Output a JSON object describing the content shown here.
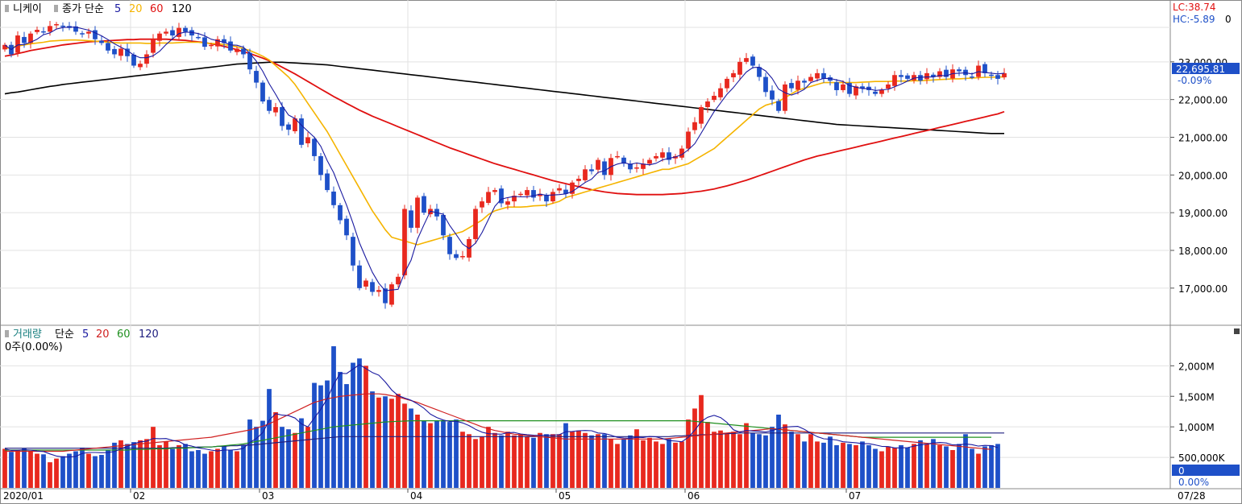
{
  "price_panel": {
    "name": "니케이",
    "ma_title": "종가 단순",
    "ma_periods": [
      "5",
      "20",
      "60",
      "120"
    ],
    "lc_label": "LC:38.74",
    "hc_label": "HC:-5.89",
    "hc_suffix": "0",
    "last_price": "22,695.81",
    "change_pct": "-0.09%",
    "price_ticks": [
      "23,000.00",
      "22,000.00",
      "21,000.00",
      "20,000.00",
      "19,000.00",
      "18,000.00",
      "17,000.00"
    ]
  },
  "volume_panel": {
    "name": "거래량",
    "ma_title": "단순",
    "ma_periods": [
      "5",
      "20",
      "60",
      "120"
    ],
    "current": "0주(0.00%)",
    "volume_ticks": [
      "2,000M",
      "1,500M",
      "1,000M",
      "500,000K"
    ],
    "last_volume": "0",
    "last_pct": "0.00%"
  },
  "x_axis": {
    "month_labels": [
      "2020/01",
      "02",
      "03",
      "04",
      "05",
      "06",
      "07"
    ],
    "end_label": "07/28"
  },
  "colors": {
    "up": "#e8281e",
    "down": "#1e50c8",
    "ma5": "#1a1aa0",
    "ma20": "#f5b400",
    "ma60": "#e01010",
    "ma120": "#000000",
    "vma20": "#d02020",
    "vma60": "#209020",
    "vma120": "#202080",
    "label_bg": "#1e50c8"
  },
  "chart_data": {
    "type": "candlestick",
    "title": "니케이",
    "price_range": [
      16100,
      24000
    ],
    "volume_range": [
      0,
      2400
    ],
    "volume_unit": "M",
    "months": [
      {
        "label": "2020/01",
        "start": 0
      },
      {
        "label": "02",
        "start": 20
      },
      {
        "label": "03",
        "start": 40
      },
      {
        "label": "04",
        "start": 63
      },
      {
        "label": "05",
        "start": 86
      },
      {
        "label": "06",
        "start": 106
      },
      {
        "label": "07",
        "start": 131
      }
    ],
    "closes": [
      23450,
      23200,
      23700,
      23500,
      23750,
      23850,
      23800,
      23950,
      24000,
      23950,
      23900,
      23800,
      23750,
      23800,
      23600,
      23500,
      23300,
      23200,
      23350,
      23150,
      22900,
      22950,
      23200,
      23600,
      23750,
      23800,
      23700,
      23900,
      23800,
      23700,
      23650,
      23400,
      23450,
      23600,
      23500,
      23300,
      23350,
      23200,
      22800,
      22450,
      21950,
      21700,
      21800,
      21300,
      21200,
      21500,
      20800,
      21000,
      20500,
      20000,
      19600,
      19200,
      18800,
      18400,
      17600,
      17000,
      17200,
      16900,
      16950,
      16600,
      17100,
      17300,
      19100,
      18600,
      19400,
      19000,
      19100,
      18900,
      18400,
      17900,
      17800,
      17850,
      18300,
      19100,
      19300,
      19550,
      19600,
      19250,
      19300,
      19450,
      19500,
      19600,
      19400,
      19500,
      19300,
      19550,
      19650,
      19500,
      19800,
      19900,
      20150,
      20100,
      20400,
      20000,
      20450,
      20500,
      20300,
      20150,
      20200,
      20300,
      20400,
      20500,
      20600,
      20400,
      20500,
      20700,
      21150,
      21400,
      21800,
      21950,
      22100,
      22300,
      22550,
      22700,
      23000,
      23100,
      22900,
      22600,
      22200,
      22000,
      21700,
      22400,
      22300,
      22500,
      22450,
      22600,
      22700,
      22550,
      22500,
      22250,
      22400,
      22150,
      22350,
      22300,
      22250,
      22150,
      22250,
      22400,
      22650,
      22600,
      22550,
      22650,
      22500,
      22700,
      22600,
      22750,
      22600,
      22800,
      22750,
      22650,
      22600,
      22900,
      22700,
      22650,
      22550,
      22700
    ],
    "volumes": [
      640,
      590,
      620,
      650,
      600,
      560,
      550,
      420,
      480,
      520,
      560,
      600,
      660,
      560,
      520,
      540,
      620,
      740,
      780,
      720,
      750,
      780,
      800,
      1000,
      700,
      760,
      640,
      700,
      720,
      600,
      620,
      560,
      600,
      640,
      680,
      620,
      600,
      700,
      1120,
      1000,
      1100,
      1620,
      1240,
      1000,
      960,
      900,
      1140,
      1000,
      1720,
      1680,
      1760,
      2320,
      1900,
      1700,
      2050,
      2120,
      2000,
      1580,
      1480,
      1500,
      1460,
      1540,
      1380,
      1300,
      1200,
      1100,
      1060,
      1100,
      1100,
      1080,
      1120,
      920,
      880,
      800,
      840,
      1000,
      900,
      860,
      920,
      860,
      880,
      840,
      820,
      900,
      880,
      880,
      880,
      1060,
      920,
      940,
      900,
      860,
      880,
      880,
      800,
      720,
      800,
      860,
      960,
      780,
      820,
      760,
      720,
      800,
      740,
      760,
      1120,
      1300,
      1520,
      1080,
      920,
      940,
      900,
      920,
      880,
      1060,
      900,
      880,
      860,
      1000,
      1200,
      1040,
      920,
      880,
      760,
      880,
      760,
      740,
      840,
      700,
      740,
      720,
      700,
      760,
      700,
      640,
      600,
      680,
      660,
      700,
      660,
      720,
      780,
      720,
      800,
      700,
      680,
      620,
      720,
      880,
      640,
      560,
      680,
      700,
      720
    ],
    "ma20": [
      23350,
      23380,
      23420,
      23450,
      23480,
      23500,
      23520,
      23550,
      23560,
      23570,
      23580,
      23580,
      23570,
      23560,
      23550,
      23540,
      23520,
      23510,
      23500,
      23500,
      23500,
      23500,
      23490,
      23490,
      23500,
      23500,
      23500,
      23510,
      23520,
      23520,
      23520,
      23500,
      23490,
      23480,
      23460,
      23430,
      23400,
      23350,
      23300,
      23230,
      23150,
      23050,
      22900,
      22750,
      22600,
      22400,
      22150,
      21900,
      21650,
      21400,
      21150,
      20850,
      20550,
      20250,
      19950,
      19650,
      19350,
      19050,
      18800,
      18550,
      18350,
      18300,
      18250,
      18200,
      18150,
      18200,
      18250,
      18300,
      18350,
      18400,
      18450,
      18500,
      18600,
      18700,
      18800,
      18950,
      19050,
      19100,
      19150,
      19150,
      19150,
      19160,
      19180,
      19190,
      19200,
      19250,
      19300,
      19400,
      19450,
      19500,
      19550,
      19600,
      19650,
      19700,
      19750,
      19800,
      19850,
      19900,
      19950,
      20000,
      20050,
      20100,
      20150,
      20150,
      20200,
      20250,
      20300,
      20400,
      20500,
      20600,
      20700,
      20850,
      21000,
      21150,
      21300,
      21450,
      21600,
      21750,
      21850,
      21900,
      21950,
      22050,
      22150,
      22250,
      22300,
      22350,
      22400,
      22450,
      22450,
      22450,
      22450,
      22450,
      22450,
      22460,
      22470,
      22480,
      22480,
      22480,
      22490,
      22490,
      22490,
      22500,
      22500,
      22510,
      22520,
      22530,
      22540,
      22550,
      22550,
      22560,
      22570,
      22580,
      22590,
      22590,
      22600,
      22600
    ],
    "ma60": [
      23150,
      23180,
      23220,
      23260,
      23300,
      23330,
      23360,
      23390,
      23420,
      23450,
      23470,
      23490,
      23510,
      23530,
      23540,
      23550,
      23560,
      23570,
      23580,
      23590,
      23590,
      23600,
      23600,
      23600,
      23600,
      23600,
      23590,
      23580,
      23570,
      23550,
      23530,
      23510,
      23480,
      23450,
      23410,
      23370,
      23320,
      23270,
      23220,
      23160,
      23100,
      23030,
      22950,
      22860,
      22770,
      22680,
      22580,
      22480,
      22380,
      22280,
      22180,
      22080,
      21990,
      21900,
      21810,
      21720,
      21640,
      21560,
      21490,
      21420,
      21350,
      21280,
      21210,
      21140,
      21070,
      21000,
      20930,
      20860,
      20790,
      20720,
      20660,
      20600,
      20540,
      20480,
      20420,
      20360,
      20300,
      20250,
      20200,
      20150,
      20100,
      20050,
      20000,
      19950,
      19900,
      19850,
      19810,
      19770,
      19730,
      19690,
      19650,
      19610,
      19580,
      19550,
      19530,
      19510,
      19500,
      19490,
      19480,
      19480,
      19480,
      19480,
      19480,
      19490,
      19500,
      19510,
      19530,
      19550,
      19570,
      19600,
      19630,
      19670,
      19710,
      19760,
      19810,
      19860,
      19920,
      19980,
      20040,
      20100,
      20160,
      20220,
      20280,
      20340,
      20400,
      20450,
      20500,
      20540,
      20580,
      20620,
      20660,
      20700,
      20740,
      20780,
      20820,
      20860,
      20900,
      20940,
      20980,
      21020,
      21060,
      21100,
      21140,
      21180,
      21220,
      21260,
      21300,
      21340,
      21380,
      21420,
      21460,
      21500,
      21540,
      21580,
      21620,
      21680
    ],
    "ma120": [
      22150,
      22180,
      22200,
      22230,
      22260,
      22290,
      22320,
      22350,
      22370,
      22400,
      22420,
      22440,
      22460,
      22480,
      22500,
      22520,
      22540,
      22560,
      22580,
      22600,
      22620,
      22640,
      22660,
      22680,
      22700,
      22720,
      22740,
      22760,
      22780,
      22800,
      22820,
      22840,
      22860,
      22880,
      22900,
      22920,
      22940,
      22950,
      22960,
      22970,
      22980,
      22990,
      22990,
      22990,
      22980,
      22970,
      22960,
      22950,
      22940,
      22930,
      22920,
      22900,
      22880,
      22860,
      22840,
      22820,
      22800,
      22780,
      22760,
      22740,
      22720,
      22700,
      22680,
      22660,
      22640,
      22620,
      22600,
      22580,
      22560,
      22540,
      22520,
      22500,
      22480,
      22460,
      22440,
      22420,
      22400,
      22380,
      22360,
      22340,
      22320,
      22300,
      22280,
      22260,
      22240,
      22220,
      22200,
      22180,
      22160,
      22140,
      22120,
      22100,
      22080,
      22060,
      22040,
      22020,
      22000,
      21980,
      21960,
      21940,
      21920,
      21900,
      21880,
      21860,
      21840,
      21820,
      21800,
      21780,
      21760,
      21740,
      21720,
      21700,
      21680,
      21660,
      21640,
      21620,
      21600,
      21580,
      21560,
      21540,
      21520,
      21500,
      21480,
      21460,
      21440,
      21420,
      21400,
      21380,
      21360,
      21340,
      21330,
      21320,
      21310,
      21300,
      21290,
      21280,
      21270,
      21260,
      21250,
      21240,
      21230,
      21220,
      21210,
      21200,
      21190,
      21180,
      21170,
      21160,
      21150,
      21140,
      21130,
      21120,
      21110,
      21100,
      21100,
      21100
    ],
    "vma20": [
      600,
      600,
      600,
      600,
      600,
      600,
      600,
      600,
      600,
      600,
      610,
      620,
      630,
      640,
      650,
      660,
      670,
      680,
      690,
      700,
      710,
      720,
      730,
      740,
      750,
      760,
      770,
      780,
      790,
      800,
      810,
      820,
      830,
      850,
      870,
      890,
      910,
      930,
      950,
      980,
      1010,
      1050,
      1100,
      1150,
      1200,
      1250,
      1300,
      1350,
      1400,
      1430,
      1460,
      1480,
      1500,
      1510,
      1520,
      1530,
      1540,
      1540,
      1540,
      1530,
      1510,
      1490,
      1460,
      1430,
      1400,
      1360,
      1320,
      1280,
      1240,
      1200,
      1160,
      1120,
      1080,
      1040,
      1000,
      970,
      940,
      920,
      900,
      880,
      870,
      860,
      850,
      840,
      830,
      820,
      810,
      800,
      800,
      800,
      800,
      800,
      800,
      800,
      800,
      800,
      800,
      800,
      800,
      800,
      800,
      800,
      800,
      810,
      820,
      830,
      840,
      850,
      860,
      870,
      880,
      890,
      900,
      910,
      920,
      930,
      940,
      950,
      960,
      970,
      960,
      950,
      940,
      930,
      920,
      910,
      900,
      890,
      880,
      870,
      860,
      850,
      840,
      830,
      820,
      810,
      800,
      790,
      780,
      770,
      760,
      750,
      740,
      730,
      720,
      710,
      700,
      690,
      680,
      670,
      660,
      650,
      640,
      630
    ],
    "vma60": [
      620,
      620,
      620,
      620,
      620,
      620,
      620,
      620,
      620,
      620,
      620,
      620,
      620,
      620,
      620,
      620,
      620,
      620,
      620,
      620,
      630,
      630,
      630,
      640,
      640,
      640,
      650,
      650,
      650,
      660,
      660,
      670,
      670,
      680,
      690,
      700,
      710,
      720,
      740,
      760,
      780,
      800,
      820,
      840,
      860,
      880,
      900,
      920,
      940,
      960,
      980,
      1000,
      1010,
      1020,
      1030,
      1040,
      1050,
      1060,
      1070,
      1080,
      1085,
      1090,
      1095,
      1100,
      1100,
      1100,
      1100,
      1100,
      1100,
      1100,
      1100,
      1100,
      1100,
      1100,
      1100,
      1100,
      1100,
      1100,
      1100,
      1100,
      1100,
      1100,
      1100,
      1100,
      1100,
      1100,
      1100,
      1100,
      1100,
      1100,
      1100,
      1100,
      1100,
      1100,
      1100,
      1100,
      1100,
      1100,
      1100,
      1100,
      1100,
      1100,
      1100,
      1100,
      1100,
      1100,
      1100,
      1090,
      1080,
      1070,
      1060,
      1050,
      1040,
      1030,
      1020,
      1010,
      1000,
      990,
      980,
      970,
      960,
      950,
      940,
      930,
      920,
      910,
      900,
      890,
      880,
      870,
      860,
      850,
      840,
      830,
      830,
      830,
      830,
      830,
      830,
      830,
      830,
      830,
      830,
      830,
      830,
      830,
      830,
      830,
      830,
      830,
      830,
      830,
      830,
      830
    ],
    "vma120": [
      650,
      650,
      650,
      650,
      650,
      650,
      650,
      650,
      650,
      650,
      650,
      650,
      650,
      650,
      650,
      650,
      650,
      650,
      650,
      650,
      650,
      650,
      650,
      650,
      650,
      650,
      660,
      660,
      660,
      660,
      670,
      670,
      670,
      680,
      680,
      690,
      690,
      700,
      700,
      710,
      720,
      730,
      740,
      750,
      760,
      770,
      780,
      790,
      800,
      810,
      820,
      830,
      840,
      840,
      840,
      840,
      840,
      840,
      840,
      840,
      840,
      840,
      840,
      840,
      840,
      840,
      840,
      840,
      840,
      840,
      840,
      840,
      840,
      840,
      840,
      840,
      840,
      840,
      840,
      840,
      840,
      840,
      840,
      840,
      840,
      840,
      840,
      840,
      840,
      840,
      840,
      840,
      840,
      840,
      840,
      840,
      840,
      840,
      840,
      840,
      840,
      840,
      840,
      840,
      850,
      850,
      860,
      860,
      870,
      870,
      880,
      880,
      890,
      890,
      900,
      900,
      900,
      900,
      900,
      900,
      900,
      900,
      900,
      900,
      900,
      900,
      900,
      900,
      900,
      900,
      900,
      900,
      900,
      900,
      900,
      900,
      900,
      900,
      900,
      900,
      900,
      900,
      900,
      900,
      900,
      900,
      900,
      900,
      900,
      900,
      900,
      900,
      900,
      900,
      900,
      900
    ]
  }
}
